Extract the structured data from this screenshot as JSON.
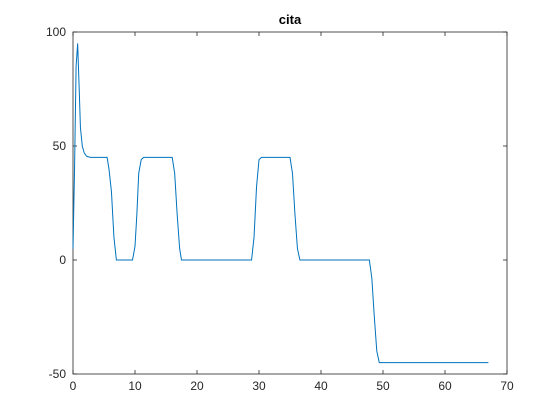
{
  "chart_data": {
    "type": "line",
    "title": "cita",
    "xlabel": "",
    "ylabel": "",
    "xlim": [
      0,
      70
    ],
    "ylim": [
      -50,
      100
    ],
    "xticks": [
      0,
      10,
      20,
      30,
      40,
      50,
      60,
      70
    ],
    "yticks": [
      -50,
      0,
      50,
      100
    ],
    "grid": false,
    "colors": {
      "line": "#0072bd",
      "axes": "#262626",
      "background": "#ffffff"
    },
    "series": [
      {
        "x": [
          0,
          0.25,
          0.5,
          0.75,
          1.0,
          1.2,
          1.5,
          1.8,
          2.2,
          2.8,
          4.0,
          5.5,
          5.8,
          6.2,
          6.6,
          7.0,
          9.6,
          10.0,
          10.3,
          10.6,
          11.0,
          11.4,
          16.0,
          16.4,
          16.8,
          17.2,
          17.5,
          28.8,
          29.2,
          29.6,
          30.0,
          30.4,
          35.0,
          35.4,
          35.8,
          36.2,
          36.6,
          47.8,
          48.2,
          48.6,
          49.0,
          49.4,
          49.8,
          67.0
        ],
        "y": [
          5,
          40,
          85,
          95,
          75,
          58,
          50,
          47,
          45.5,
          45,
          45,
          45,
          40,
          30,
          10,
          0,
          0,
          6,
          20,
          38,
          44,
          45,
          45,
          38,
          20,
          5,
          0,
          0,
          10,
          32,
          44,
          45,
          45,
          38,
          20,
          5,
          0,
          0,
          -8,
          -25,
          -40,
          -45,
          -45,
          -45
        ]
      }
    ]
  }
}
